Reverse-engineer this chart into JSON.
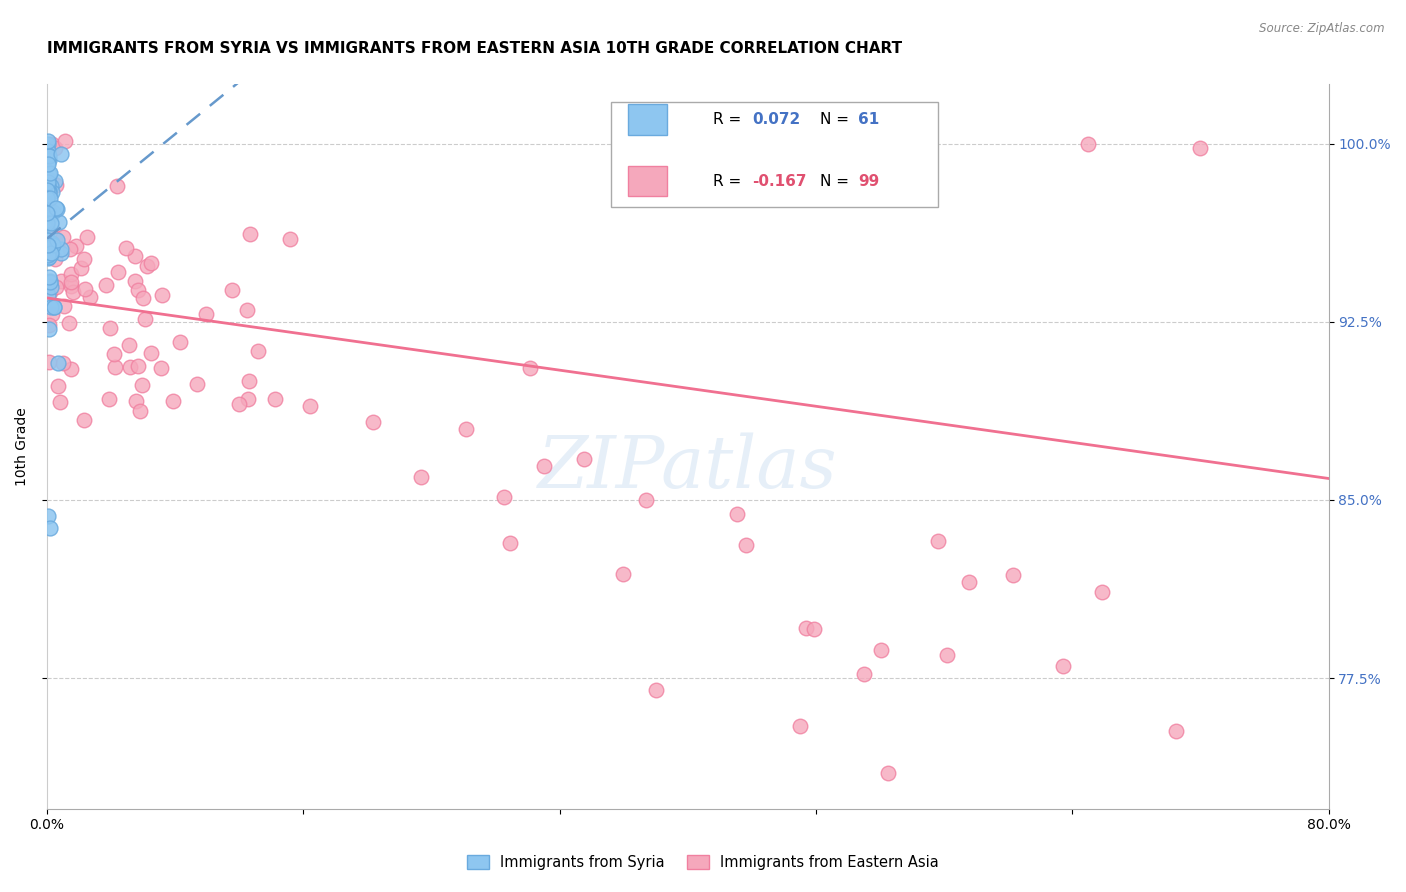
{
  "title": "IMMIGRANTS FROM SYRIA VS IMMIGRANTS FROM EASTERN ASIA 10TH GRADE CORRELATION CHART",
  "source": "Source: ZipAtlas.com",
  "ylabel": "10th Grade",
  "y_tick_values": [
    1.0,
    0.925,
    0.85,
    0.775
  ],
  "y_tick_labels_right": [
    "100.0%",
    "92.5%",
    "85.0%",
    "77.5%"
  ],
  "x_tick_labels": [
    "0.0%",
    "",
    "",
    "",
    "",
    "80.0%"
  ],
  "x_tick_vals": [
    0.0,
    0.16,
    0.32,
    0.48,
    0.64,
    0.8
  ],
  "xlim": [
    0.0,
    0.8
  ],
  "ylim": [
    0.72,
    1.025
  ],
  "legend_r1": "0.072",
  "legend_n1": "61",
  "legend_r2": "-0.167",
  "legend_n2": "99",
  "color_syria": "#8EC6F0",
  "color_syria_edge": "#6AAADE",
  "color_ea": "#F5A8BC",
  "color_ea_edge": "#F080A0",
  "color_trend_syria": "#6699CC",
  "color_trend_ea": "#F07090",
  "color_rvalue_blue": "#4472C4",
  "color_rvalue_pink": "#E05070",
  "label_syria": "Immigrants from Syria",
  "label_ea": "Immigrants from Eastern Asia",
  "title_fontsize": 11,
  "axis_fontsize": 10,
  "right_axis_color": "#4472C4"
}
